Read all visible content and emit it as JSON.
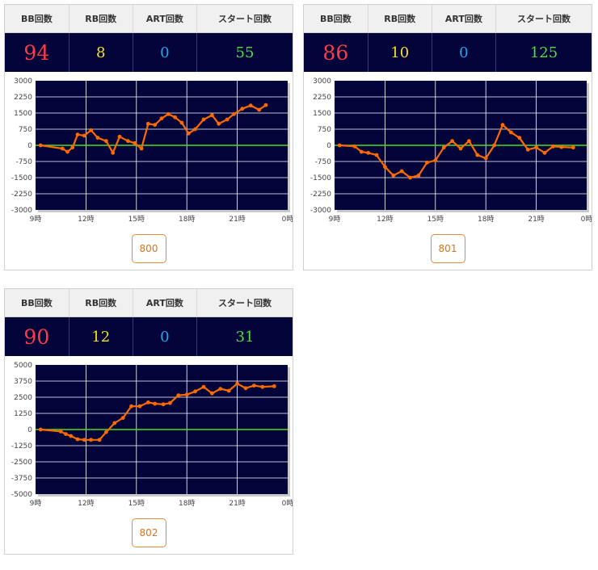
{
  "headers": {
    "bb": "BB回数",
    "rb": "RB回数",
    "art": "ART回数",
    "start": "スタート回数"
  },
  "colors": {
    "bb": "#ff3b45",
    "rb": "#f6e11d",
    "art": "#2ba3f0",
    "start": "#4fe03a",
    "line": "#ff6a00",
    "zero_line": "#44dd22",
    "plot_bg": "#02043a"
  },
  "cards": [
    {
      "machine": "800",
      "bb": "94",
      "rb": "8",
      "art": "0",
      "start": "55",
      "chart_data": {
        "type": "line",
        "x_ticks": [
          "9時",
          "12時",
          "15時",
          "18時",
          "21時",
          "0時"
        ],
        "xlim": [
          9,
          24
        ],
        "y_ticks": [
          "3000",
          "2250",
          "1500",
          "750",
          "0",
          "-750",
          "-1500",
          "-2250",
          "-3000"
        ],
        "ylim": [
          -3000,
          3000
        ],
        "grid": true,
        "series": [
          {
            "x": [
              9.3,
              10.6,
              10.9,
              11.2,
              11.5,
              11.9,
              12.3,
              12.7,
              13.2,
              13.6,
              14.0,
              14.5,
              14.9,
              15.3,
              15.7,
              16.1,
              16.5,
              16.9,
              17.3,
              17.7,
              18.1,
              18.5,
              19.0,
              19.5,
              19.9,
              20.4,
              20.8,
              21.3,
              21.8,
              22.3,
              22.7
            ],
            "y": [
              0,
              -150,
              -300,
              -100,
              500,
              450,
              700,
              350,
              200,
              -350,
              400,
              200,
              100,
              -150,
              1000,
              950,
              1250,
              1450,
              1300,
              1050,
              550,
              750,
              1200,
              1400,
              1000,
              1200,
              1450,
              1700,
              1850,
              1650,
              1870
            ]
          }
        ]
      }
    },
    {
      "machine": "801",
      "bb": "86",
      "rb": "10",
      "art": "0",
      "start": "125",
      "chart_data": {
        "type": "line",
        "x_ticks": [
          "9時",
          "12時",
          "15時",
          "18時",
          "21時",
          "0時"
        ],
        "xlim": [
          9,
          24
        ],
        "y_ticks": [
          "3000",
          "2250",
          "1500",
          "750",
          "0",
          "-750",
          "-1500",
          "-2250",
          "-3000"
        ],
        "ylim": [
          -3000,
          3000
        ],
        "grid": true,
        "series": [
          {
            "x": [
              9.3,
              10.2,
              10.6,
              11.0,
              11.5,
              12.0,
              12.5,
              13.0,
              13.5,
              14.0,
              14.5,
              15.0,
              15.5,
              16.0,
              16.5,
              17.0,
              17.5,
              18.0,
              18.5,
              19.0,
              19.5,
              20.0,
              20.5,
              21.0,
              21.5,
              22.0,
              22.5,
              23.2
            ],
            "y": [
              0,
              -50,
              -300,
              -350,
              -450,
              -1000,
              -1400,
              -1200,
              -1500,
              -1400,
              -800,
              -700,
              -100,
              200,
              -150,
              200,
              -450,
              -600,
              0,
              950,
              600,
              350,
              -200,
              -100,
              -350,
              -50,
              -80,
              -100
            ]
          }
        ]
      }
    },
    {
      "machine": "802",
      "bb": "90",
      "rb": "12",
      "art": "0",
      "start": "31",
      "chart_data": {
        "type": "line",
        "x_ticks": [
          "9時",
          "12時",
          "15時",
          "18時",
          "21時",
          "0時"
        ],
        "xlim": [
          9,
          24
        ],
        "y_ticks": [
          "5000",
          "3750",
          "2500",
          "1250",
          "0",
          "-1250",
          "-2500",
          "-3750",
          "-5000"
        ],
        "ylim": [
          -5000,
          5000
        ],
        "grid": true,
        "series": [
          {
            "x": [
              9.3,
              10.5,
              10.8,
              11.1,
              11.5,
              11.9,
              12.3,
              12.8,
              13.2,
              13.7,
              14.2,
              14.7,
              15.2,
              15.7,
              16.1,
              16.6,
              17.0,
              17.5,
              18.0,
              18.5,
              19.0,
              19.5,
              20.0,
              20.5,
              21.0,
              21.5,
              22.0,
              22.5,
              23.2
            ],
            "y": [
              0,
              -150,
              -350,
              -500,
              -750,
              -800,
              -800,
              -800,
              -200,
              500,
              900,
              1800,
              1800,
              2100,
              2000,
              1950,
              2050,
              2650,
              2700,
              2950,
              3300,
              2800,
              3150,
              3000,
              3550,
              3200,
              3400,
              3300,
              3350
            ]
          }
        ]
      }
    }
  ]
}
